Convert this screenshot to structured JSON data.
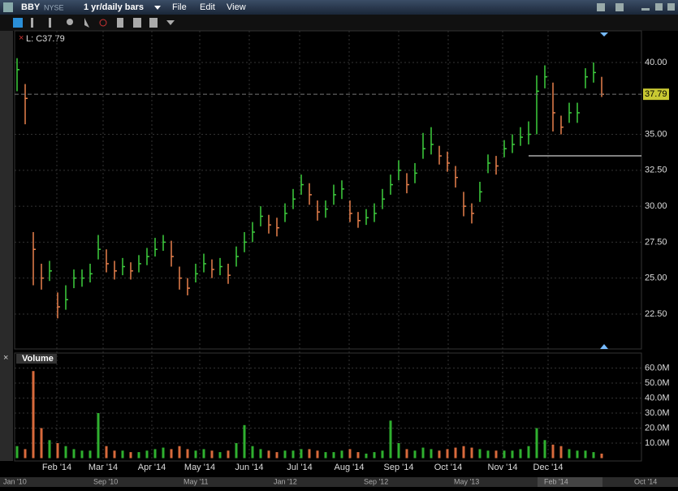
{
  "toolbar": {
    "symbol": "BBY",
    "exchange": "NYSE",
    "period": "1 yr/daily bars",
    "menus": [
      "File",
      "Edit",
      "View"
    ]
  },
  "chart_data": [
    {
      "type": "hlc",
      "legend_label": "L: C37.79",
      "up_color": "#3ecf3e",
      "down_color": "#e8804c",
      "xlim": [
        -0.3,
        76.9
      ],
      "ylim": [
        20.07,
        42.2
      ],
      "xticks": [
        {
          "value": 4.9,
          "label": "Feb '14"
        },
        {
          "value": 10.6,
          "label": "Mar '14"
        },
        {
          "value": 16.6,
          "label": "Apr '14"
        },
        {
          "value": 22.5,
          "label": "May '14"
        },
        {
          "value": 28.6,
          "label": "Jun '14"
        },
        {
          "value": 34.8,
          "label": "Jul '14"
        },
        {
          "value": 40.9,
          "label": "Aug '14"
        },
        {
          "value": 47,
          "label": "Sep '14"
        },
        {
          "value": 53.1,
          "label": "Oct '14"
        },
        {
          "value": 59.8,
          "label": "Nov '14"
        },
        {
          "value": 65.4,
          "label": "Dec '14"
        }
      ],
      "yticks": [
        {
          "value": 22.5,
          "label": "22.50"
        },
        {
          "value": 25,
          "label": "25.00"
        },
        {
          "value": 27.5,
          "label": "27.50"
        },
        {
          "value": 30,
          "label": "30.00"
        },
        {
          "value": 32.5,
          "label": "32.50"
        },
        {
          "value": 35,
          "label": "35.00"
        },
        {
          "value": 40,
          "label": "40.00"
        }
      ],
      "grid": true,
      "last_price": {
        "value": 37.79,
        "label": "37.79"
      },
      "high": [
        40.3,
        38.5,
        28.2,
        26,
        26.2,
        24,
        24.5,
        25.6,
        25.6,
        26,
        28,
        27,
        26.2,
        26.4,
        26.1,
        26.6,
        27.1,
        27.8,
        28,
        27.6,
        25.8,
        25,
        26,
        26.7,
        26.3,
        26.4,
        26,
        27.2,
        28.2,
        28.9,
        30,
        29.4,
        29.2,
        30.2,
        31.2,
        32.2,
        31.6,
        30.4,
        30.4,
        31.5,
        31.8,
        30.4,
        29.6,
        29.8,
        30.2,
        31.2,
        32.2,
        33.2,
        32.3,
        33,
        35.1,
        35.5,
        34.2,
        33.8,
        32.8,
        31,
        30.2,
        31.7,
        33.6,
        33.5,
        34.6,
        35,
        35.5,
        35.9,
        39.1,
        39.8,
        38.6,
        36.3,
        37.2,
        37.2,
        39.6,
        40,
        39
      ],
      "low": [
        38,
        35.7,
        24.5,
        24.2,
        24.8,
        22.2,
        22.8,
        24.3,
        24.4,
        24.7,
        26.3,
        25.4,
        24.9,
        25.2,
        24.9,
        25.4,
        25.9,
        26.5,
        26.9,
        25.8,
        24.2,
        23.8,
        24.7,
        25.4,
        25,
        25.2,
        24.6,
        25.8,
        26.8,
        27.5,
        28.6,
        28.1,
        27.9,
        28.9,
        29.8,
        30.8,
        30.1,
        29,
        29.2,
        30.1,
        30.5,
        28.9,
        28.5,
        28.7,
        28.9,
        29.8,
        30.8,
        31.8,
        30.9,
        31.6,
        33.3,
        33.6,
        32.9,
        32.4,
        31.3,
        29.3,
        28.8,
        30.3,
        32.3,
        32.2,
        33.4,
        33.7,
        34.2,
        34.3,
        35,
        38.2,
        35.2,
        35,
        35.8,
        35.8,
        38.2,
        38.6,
        37.6
      ],
      "close": [
        39.5,
        37.5,
        27,
        25,
        25.5,
        23,
        23.5,
        25,
        25,
        25.3,
        27,
        26,
        25.5,
        25.8,
        25.5,
        26,
        26.5,
        27,
        27.5,
        26.5,
        25,
        24.3,
        25.3,
        26,
        25.6,
        25.8,
        25.2,
        26.5,
        27.5,
        28.2,
        29.3,
        28.7,
        28.5,
        29.5,
        30.5,
        31.5,
        30.8,
        29.6,
        29.8,
        30.8,
        31.2,
        29.5,
        29,
        29.2,
        29.5,
        30.5,
        31.5,
        32.5,
        31.5,
        32.3,
        34,
        34.3,
        33.5,
        33,
        32,
        30,
        29.5,
        31,
        33,
        32.8,
        34,
        34.3,
        34.8,
        35,
        38,
        39,
        36.5,
        35.5,
        36.5,
        36.5,
        39,
        39.3,
        37.79
      ]
    },
    {
      "type": "bar",
      "title": "Volume",
      "color": "#2fb02f",
      "down_color": "#d86a3c",
      "xlim": [
        -0.3,
        76.9
      ],
      "ylim": [
        0,
        70
      ],
      "yticks": [
        {
          "value": 10,
          "label": "10.0M"
        },
        {
          "value": 20,
          "label": "20.0M"
        },
        {
          "value": 30,
          "label": "30.0M"
        },
        {
          "value": 40,
          "label": "40.0M"
        },
        {
          "value": 50,
          "label": "50.0M"
        },
        {
          "value": 60,
          "label": "60.0M"
        }
      ],
      "values": [
        8,
        6,
        58,
        20,
        12,
        10,
        8,
        6,
        5,
        5,
        30,
        8,
        5,
        5,
        4,
        4,
        5,
        6,
        7,
        6,
        8,
        6,
        5,
        6,
        5,
        4,
        5,
        10,
        22,
        8,
        6,
        5,
        4,
        5,
        5,
        6,
        6,
        5,
        4,
        4,
        5,
        6,
        4,
        3,
        4,
        5,
        25,
        10,
        6,
        5,
        7,
        6,
        5,
        6,
        7,
        8,
        7,
        6,
        5,
        5,
        5,
        5,
        6,
        8,
        20,
        12,
        9,
        8,
        6,
        5,
        5,
        4,
        3
      ]
    }
  ],
  "navigator": {
    "labels": [
      "Jan '10",
      "Sep '10",
      "May '11",
      "Jan '12",
      "Sep '12",
      "May '13",
      "Feb '14",
      "Oct '14"
    ]
  }
}
